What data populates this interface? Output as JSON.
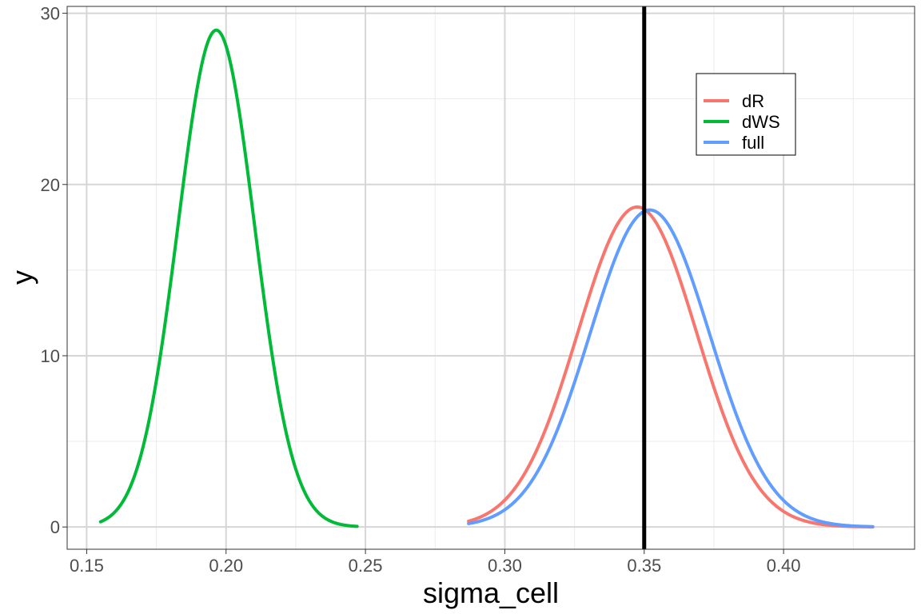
{
  "chart_data": {
    "type": "line",
    "title": "",
    "xlabel": "sigma_cell",
    "ylabel": "y",
    "xlim": [
      0.143,
      0.447
    ],
    "ylim": [
      -1.3,
      30.4
    ],
    "x_ticks": [
      0.15,
      0.2,
      0.25,
      0.3,
      0.35,
      0.4
    ],
    "x_tick_labels": [
      "0.15",
      "0.20",
      "0.25",
      "0.30",
      "0.35",
      "0.40"
    ],
    "x_minor_ticks": [
      0.175,
      0.225,
      0.275,
      0.325,
      0.375,
      0.425
    ],
    "y_ticks": [
      0,
      10,
      20,
      30
    ],
    "y_tick_labels": [
      "0",
      "10",
      "20",
      "30"
    ],
    "y_minor_ticks": [
      5,
      15,
      25
    ],
    "grid": true,
    "legend_position": "top-right",
    "reference_line": {
      "orientation": "vertical",
      "x": 0.35,
      "color": "#000000"
    },
    "series": [
      {
        "name": "dR",
        "color": "#F8766D",
        "mean": 0.3475,
        "sd": 0.02135,
        "x_range": [
          0.287,
          0.432
        ]
      },
      {
        "name": "dWS",
        "color": "#00BA38",
        "mean": 0.1965,
        "sd": 0.01375,
        "x_range": [
          0.155,
          0.247
        ]
      },
      {
        "name": "full",
        "color": "#619CFF",
        "mean": 0.352,
        "sd": 0.02155,
        "x_range": [
          0.287,
          0.432
        ]
      }
    ]
  }
}
